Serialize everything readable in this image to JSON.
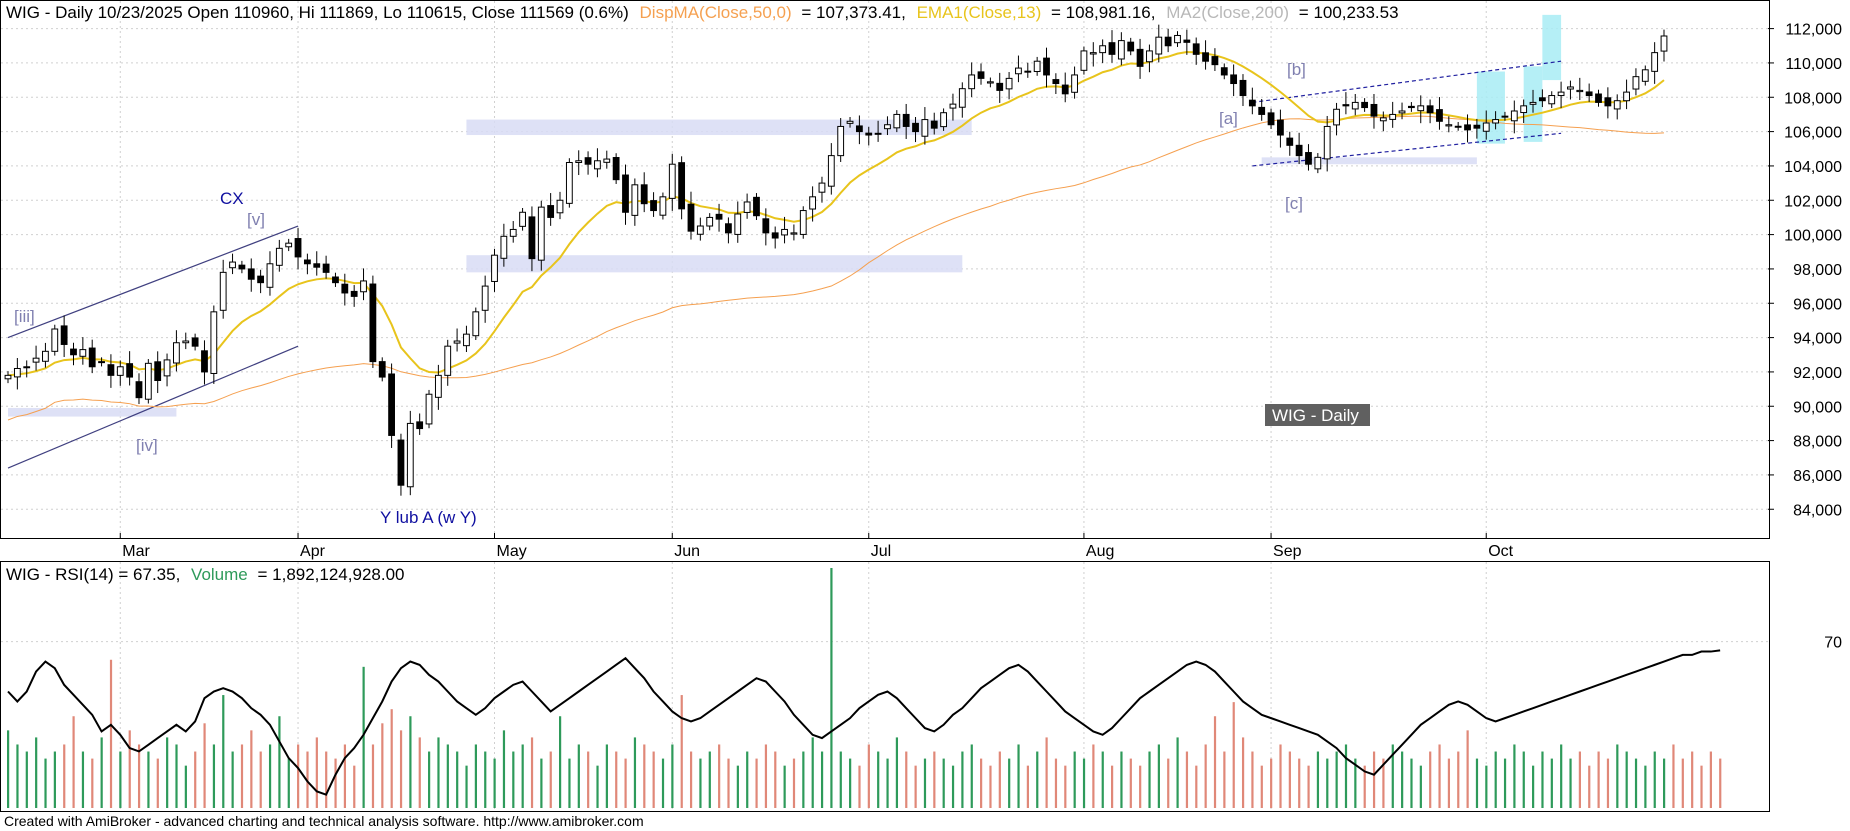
{
  "header": {
    "main": "WIG - Daily 10/23/2025 Open 110960, Hi 111869, Lo 110615, Close 111569 (0.6%)",
    "ma50_label": "DispMA(Close,50,0)",
    "ma50_value": "= 107,373.41,",
    "ema13_label": "EMA1(Close,13)",
    "ema13_value": "= 108,981.16,",
    "ma200_label": "MA2(Close,200)",
    "ma200_value": "= 100,233.53"
  },
  "lower_header": {
    "main": "WIG - RSI(14) = 67.35,",
    "volume_label": "Volume",
    "volume_value": "= 1,892,124,928.00"
  },
  "watermark": "WIG - Daily",
  "footer": "Created with AmiBroker - advanced charting and technical analysis software. http://www.amibroker.com",
  "annotations": {
    "cx": "CX",
    "v": "[v]",
    "iii": "[iii]",
    "iv": "[iv]",
    "ylub": "Y lub A (w Y)",
    "a": "[a]",
    "b": "[b]",
    "c": "[c]"
  },
  "colors": {
    "ema13": "#e8c41c",
    "ma50": "#f5a050",
    "ma200": "#a0a0a0",
    "zone": "#d8dcf5",
    "cyan": "#a8ecf4",
    "wave_label": "#8080b0",
    "blue_text": "#1010a0",
    "vol_up": "#2e9a5a",
    "vol_down": "#e08878"
  },
  "chart_data": [
    {
      "type": "candlestick",
      "title": "WIG - Daily",
      "ylim": [
        82500,
        113200
      ],
      "yticks": [
        "84,000",
        "86,000",
        "88,000",
        "90,000",
        "92,000",
        "94,000",
        "96,000",
        "98,000",
        "100,000",
        "102,000",
        "104,000",
        "106,000",
        "108,000",
        "110,000",
        "112,000"
      ],
      "months": [
        "Mar",
        "Apr",
        "May",
        "Jun",
        "Jul",
        "Aug",
        "Sep",
        "Oct"
      ],
      "close": [
        91800,
        92200,
        92300,
        92800,
        93200,
        94500,
        93600,
        93000,
        93300,
        92300,
        92600,
        91800,
        92300,
        91700,
        90500,
        92500,
        91500,
        92700,
        93700,
        93800,
        93500,
        92000,
        95500,
        97800,
        98400,
        98000,
        97400,
        97200,
        98300,
        99200,
        99500,
        98700,
        98300,
        98100,
        97800,
        97200,
        96600,
        96400,
        97300,
        92600,
        91700,
        88300,
        85400,
        89000,
        88700,
        90700,
        91800,
        93500,
        93800,
        94200,
        95500,
        97000,
        98800,
        99900,
        100300,
        101300,
        98600,
        101600,
        101000,
        102000,
        104200,
        104300,
        104100,
        104300,
        104400,
        103200,
        101300,
        102900,
        101800,
        101400,
        102200,
        104100,
        101500,
        100200,
        100500,
        101000,
        100900,
        100100,
        101200,
        101900,
        101100,
        100100,
        99800,
        100300,
        100100,
        101400,
        102200,
        103000,
        104600,
        106300,
        106600,
        106000,
        105800,
        105900,
        106400,
        107000,
        106300,
        106000,
        106700,
        106200,
        107100,
        107600,
        108500,
        109300,
        109100,
        108900,
        108400,
        109100,
        109700,
        109500,
        110100,
        109300,
        108800,
        108200,
        109300,
        110700,
        110600,
        111000,
        110500,
        111300,
        110700,
        109800,
        110700,
        111500,
        111000,
        111600,
        111200,
        110500,
        110100,
        109900,
        109300,
        108800,
        108100,
        107500,
        107000,
        106400,
        105800,
        105200,
        104600,
        104100,
        104500,
        106300,
        107300,
        107500,
        107700,
        107400,
        106900,
        106800,
        107000,
        107200,
        107400,
        107500,
        107100,
        106600,
        106400,
        106300,
        106100,
        106200,
        106500,
        106700,
        106900,
        107200,
        107500,
        107700,
        107800,
        108100,
        108300,
        108600,
        108400,
        108100,
        107700,
        107500,
        107800,
        108300,
        109200,
        109600,
        110600,
        111569
      ]
    },
    {
      "type": "line",
      "title": "RSI(14)",
      "ylim": [
        20,
        90
      ],
      "yticks": [
        "70"
      ],
      "series": [
        {
          "name": "RSI(14)",
          "values": [
            55,
            52,
            55,
            61,
            64,
            62,
            57,
            54,
            51,
            48,
            43,
            45,
            42,
            38,
            37,
            39,
            41,
            43,
            45,
            43,
            46,
            53,
            55,
            56,
            55,
            53,
            50,
            48,
            45,
            40,
            35,
            32,
            28,
            25,
            24,
            30,
            35,
            38,
            42,
            47,
            52,
            58,
            62,
            64,
            63,
            60,
            58,
            55,
            52,
            50,
            48,
            50,
            53,
            55,
            57,
            58,
            55,
            52,
            49,
            51,
            53,
            55,
            57,
            59,
            61,
            63,
            65,
            62,
            59,
            55,
            52,
            49,
            47,
            46,
            47,
            49,
            51,
            53,
            55,
            57,
            59,
            58,
            55,
            52,
            48,
            45,
            42,
            41,
            43,
            45,
            47,
            50,
            52,
            54,
            55,
            53,
            50,
            47,
            44,
            43,
            45,
            48,
            50,
            53,
            56,
            58,
            60,
            62,
            63,
            61,
            58,
            55,
            52,
            49,
            47,
            45,
            43,
            42,
            44,
            47,
            50,
            53,
            55,
            57,
            59,
            61,
            63,
            64,
            63,
            61,
            58,
            55,
            52,
            50,
            48,
            47,
            46,
            45,
            44,
            43,
            42,
            40,
            38,
            35,
            33,
            31,
            30,
            33,
            36,
            39,
            42,
            45,
            47,
            49,
            51,
            52,
            51,
            49,
            47,
            46,
            47,
            48,
            49,
            50,
            51,
            52,
            53,
            54,
            55,
            56,
            57,
            58,
            59,
            60,
            61,
            62,
            63,
            64,
            65,
            66,
            66,
            67,
            67,
            67.35
          ]
        }
      ]
    },
    {
      "type": "bar",
      "title": "Volume",
      "series": [
        {
          "name": "Volume",
          "values": [
            1.1,
            0.9,
            0.8,
            1.0,
            0.7,
            0.8,
            0.9,
            1.3,
            0.8,
            0.7,
            1.0,
            2.1,
            0.8,
            1.1,
            0.9,
            0.8,
            0.7,
            1.0,
            0.9,
            0.6,
            0.8,
            1.2,
            0.9,
            1.6,
            0.8,
            0.9,
            1.1,
            0.8,
            0.9,
            1.3,
            0.7,
            0.9,
            0.8,
            1.0,
            0.8,
            0.7,
            0.9,
            0.6,
            2.0,
            0.9,
            1.2,
            1.4,
            1.1,
            1.3,
            1.0,
            0.8,
            1.0,
            0.9,
            0.8,
            0.6,
            0.9,
            0.8,
            0.7,
            1.1,
            0.8,
            0.9,
            1.0,
            0.7,
            0.8,
            1.3,
            0.7,
            0.9,
            0.8,
            0.6,
            0.9,
            0.8,
            0.7,
            1.0,
            0.9,
            0.8,
            0.7,
            0.9,
            1.6,
            0.8,
            0.7,
            0.8,
            0.9,
            0.7,
            0.6,
            0.8,
            0.7,
            0.9,
            0.8,
            0.6,
            0.7,
            0.8,
            1.0,
            0.8,
            3.4,
            0.8,
            0.7,
            0.6,
            0.9,
            0.8,
            0.7,
            1.0,
            0.8,
            0.6,
            0.7,
            0.8,
            0.7,
            0.6,
            0.8,
            0.9,
            0.7,
            0.6,
            0.8,
            0.7,
            0.9,
            0.6,
            0.8,
            1.0,
            0.7,
            0.6,
            0.8,
            0.7,
            0.9,
            0.8,
            0.6,
            0.8,
            0.7,
            0.6,
            0.8,
            0.9,
            0.7,
            1.0,
            0.8,
            0.6,
            0.9,
            1.3,
            0.8,
            1.5,
            1.0,
            0.8,
            0.6,
            0.7,
            0.9,
            0.8,
            0.7,
            0.6,
            0.8,
            0.7,
            0.8,
            0.9,
            0.7,
            0.6,
            0.8,
            0.7,
            0.9,
            0.8,
            0.7,
            0.6,
            0.8,
            0.9,
            0.7,
            0.8,
            1.1,
            0.7,
            0.6,
            0.8,
            0.7,
            0.9,
            0.8,
            0.6,
            0.8,
            0.7,
            0.9,
            0.7,
            0.8,
            0.6,
            0.8,
            0.7,
            0.9,
            0.8,
            0.7,
            0.6,
            0.8,
            0.7,
            0.9,
            0.7,
            0.8,
            0.6,
            0.8,
            0.7
          ]
        }
      ]
    }
  ]
}
